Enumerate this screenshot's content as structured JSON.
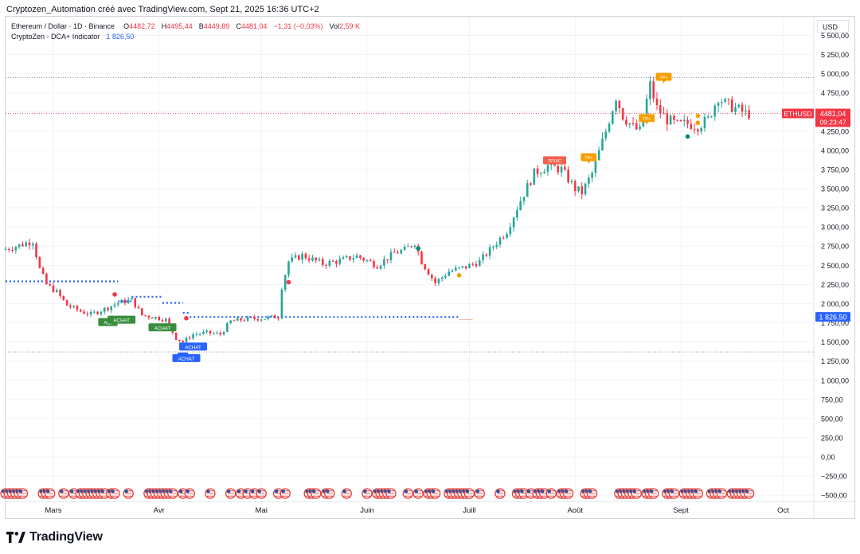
{
  "header": {
    "caption": "Cryptozen_Automation créé avec TradingView.com, Sept 21, 2025 16:36 UTC+2"
  },
  "legend": {
    "symbol": "Ethereum / Dollar · 1D · Binance",
    "o_label": "O",
    "o_value": "4482,72",
    "h_label": "H",
    "h_value": "4495,44",
    "b_label": "B",
    "b_value": "4449,89",
    "c_label": "C",
    "c_value": "4481,04",
    "change": "−1,31 (−0,03%)",
    "vol_label": "Vol",
    "vol_value": "2,59 K",
    "indicator_name": "CryptoZen - DCA+ Indicator",
    "indicator_value": "1 826,50"
  },
  "price_axis": {
    "currency": "USD",
    "ticks": [
      "5 500,00",
      "5 250,00",
      "5 000,00",
      "4 750,00",
      "4 500,00",
      "4 250,00",
      "4 000,00",
      "3 750,00",
      "3 500,00",
      "3 250,00",
      "3 000,00",
      "2 750,00",
      "2 500,00",
      "2 250,00",
      "2 000,00",
      "1 750,00",
      "1 500,00",
      "1 250,00",
      "1 000,00",
      "750,00",
      "500,00",
      "250,00",
      "0,00",
      "−250,00",
      "−500,00"
    ]
  },
  "time_axis": {
    "labels": [
      "Mars",
      "Avr",
      "Mai",
      "Juin",
      "Juill",
      "Août",
      "Sept",
      "Oct"
    ]
  },
  "price_badge": {
    "symbol": "ETHUSD",
    "price": "4481,04",
    "countdown": "09:23:47"
  },
  "indicator_badge": {
    "value": "1 826,50"
  },
  "signals": {
    "buy": "ACHAT",
    "buy_short": "ACI",
    "buy_short_2": "A",
    "tp_label": "TP10C",
    "tp_small": "TP+"
  },
  "brand": {
    "name": "TradingView"
  },
  "colors": {
    "up": "#26a69a",
    "down": "#f23645",
    "dca": "#2962ff",
    "buy_badge": "#388e3c",
    "buy_badge_blue": "#2962ff",
    "tp_red": "#f0624d",
    "tp_orange": "#f59f00"
  },
  "chart_data": {
    "type": "candlestick",
    "symbol": "ETHUSD",
    "timeframe": "1D",
    "x_range": [
      "2025-02-15",
      "2025-10-10"
    ],
    "ylim": [
      -550,
      5650
    ],
    "y_ticks": [
      5500,
      5250,
      5000,
      4750,
      4500,
      4250,
      4000,
      3750,
      3500,
      3250,
      3000,
      2750,
      2500,
      2250,
      2000,
      1750,
      1500,
      1250,
      1000,
      750,
      500,
      250,
      0,
      -250,
      -500
    ],
    "last_price": 4481.04,
    "horizontal_levels": [
      4950,
      4481,
      1370
    ],
    "price_path": [
      [
        "2025-02-15",
        2700
      ],
      [
        "2025-02-20",
        2760
      ],
      [
        "2025-02-24",
        2820
      ],
      [
        "2025-02-26",
        2450
      ],
      [
        "2025-02-28",
        2250
      ],
      [
        "2025-03-03",
        2150
      ],
      [
        "2025-03-06",
        1980
      ],
      [
        "2025-03-10",
        1900
      ],
      [
        "2025-03-13",
        1860
      ],
      [
        "2025-03-17",
        1930
      ],
      [
        "2025-03-21",
        2010
      ],
      [
        "2025-03-25",
        2050
      ],
      [
        "2025-03-28",
        1850
      ],
      [
        "2025-04-01",
        1820
      ],
      [
        "2025-04-04",
        1790
      ],
      [
        "2025-04-07",
        1550
      ],
      [
        "2025-04-09",
        1500
      ],
      [
        "2025-04-12",
        1600
      ],
      [
        "2025-04-16",
        1620
      ],
      [
        "2025-04-20",
        1600
      ],
      [
        "2025-04-23",
        1770
      ],
      [
        "2025-04-28",
        1800
      ],
      [
        "2025-05-03",
        1810
      ],
      [
        "2025-05-07",
        1830
      ],
      [
        "2025-05-08",
        2220
      ],
      [
        "2025-05-10",
        2550
      ],
      [
        "2025-05-14",
        2630
      ],
      [
        "2025-05-20",
        2520
      ],
      [
        "2025-05-25",
        2560
      ],
      [
        "2025-05-30",
        2620
      ],
      [
        "2025-06-05",
        2500
      ],
      [
        "2025-06-10",
        2660
      ],
      [
        "2025-06-13",
        2700
      ],
      [
        "2025-06-16",
        2800
      ],
      [
        "2025-06-18",
        2550
      ],
      [
        "2025-06-22",
        2270
      ],
      [
        "2025-06-26",
        2420
      ],
      [
        "2025-07-01",
        2480
      ],
      [
        "2025-07-05",
        2550
      ],
      [
        "2025-07-09",
        2750
      ],
      [
        "2025-07-13",
        2950
      ],
      [
        "2025-07-17",
        3350
      ],
      [
        "2025-07-21",
        3700
      ],
      [
        "2025-07-25",
        3800
      ],
      [
        "2025-07-29",
        3750
      ],
      [
        "2025-08-02",
        3500
      ],
      [
        "2025-08-04",
        3450
      ],
      [
        "2025-08-07",
        3700
      ],
      [
        "2025-08-11",
        4250
      ],
      [
        "2025-08-14",
        4700
      ],
      [
        "2025-08-16",
        4450
      ],
      [
        "2025-08-19",
        4300
      ],
      [
        "2025-08-21",
        4250
      ],
      [
        "2025-08-24",
        4850
      ],
      [
        "2025-08-26",
        4550
      ],
      [
        "2025-08-29",
        4400
      ],
      [
        "2025-09-01",
        4330
      ],
      [
        "2025-09-04",
        4350
      ],
      [
        "2025-09-07",
        4320
      ],
      [
        "2025-09-10",
        4400
      ],
      [
        "2025-09-13",
        4700
      ],
      [
        "2025-09-15",
        4610
      ],
      [
        "2025-09-18",
        4550
      ],
      [
        "2025-09-21",
        4481
      ]
    ],
    "dca_levels": [
      {
        "from": "2025-02-15",
        "to": "2025-03-20",
        "value": 2290
      },
      {
        "from": "2025-03-20",
        "to": "2025-03-24",
        "value": 2030
      },
      {
        "from": "2025-03-24",
        "to": "2025-04-02",
        "value": 2090
      },
      {
        "from": "2025-04-02",
        "to": "2025-04-08",
        "value": 2010
      },
      {
        "from": "2025-04-08",
        "to": "2025-04-10",
        "value": 1880
      },
      {
        "from": "2025-04-10",
        "to": "2025-06-28",
        "value": 1826.5
      }
    ],
    "buy_signals": [
      {
        "date": "2025-03-17",
        "price": 1760,
        "label": "ACI",
        "color": "green"
      },
      {
        "date": "2025-03-21",
        "price": 1790,
        "label": "ACHAT",
        "color": "green"
      },
      {
        "date": "2025-04-02",
        "price": 1690,
        "label": "ACHAT",
        "color": "green"
      },
      {
        "date": "2025-04-11",
        "price": 1440,
        "label": "ACHAT",
        "color": "blue"
      },
      {
        "date": "2025-04-08",
        "price": 1310,
        "label": "A",
        "color": "blue"
      },
      {
        "date": "2025-04-09",
        "price": 1290,
        "label": "ACHAT",
        "color": "blue"
      }
    ],
    "tp_signals": [
      {
        "date": "2025-07-26",
        "price": 3870,
        "label": "TP10C",
        "color": "red"
      },
      {
        "date": "2025-08-05",
        "price": 3910,
        "label": "TP+",
        "color": "orange"
      },
      {
        "date": "2025-08-22",
        "price": 4420,
        "label": "TP+",
        "color": "orange"
      },
      {
        "date": "2025-08-27",
        "price": 4960,
        "label": "TP+",
        "color": "orange"
      }
    ],
    "dot_markers": [
      {
        "date": "2025-03-19",
        "price": 2120,
        "color": "red"
      },
      {
        "date": "2025-04-09",
        "price": 1810,
        "color": "red"
      },
      {
        "date": "2025-05-09",
        "price": 2280,
        "color": "red"
      },
      {
        "date": "2025-06-16",
        "price": 2720,
        "color": "teal"
      },
      {
        "date": "2025-06-28",
        "price": 2370,
        "color": "orange"
      },
      {
        "date": "2025-09-03",
        "price": 4180,
        "color": "teal"
      },
      {
        "date": "2025-09-06",
        "price": 4450,
        "color": "orange"
      },
      {
        "date": "2025-09-06",
        "price": 4360,
        "color": "orange"
      }
    ],
    "event_days": [
      "2025-02-15",
      "2025-02-16",
      "2025-02-17",
      "2025-02-18",
      "2025-02-19",
      "2025-02-20",
      "2025-02-26",
      "2025-02-27",
      "2025-02-28",
      "2025-03-04",
      "2025-03-07",
      "2025-03-09",
      "2025-03-10",
      "2025-03-11",
      "2025-03-12",
      "2025-03-13",
      "2025-03-14",
      "2025-03-15",
      "2025-03-16",
      "2025-03-18",
      "2025-03-19",
      "2025-03-23",
      "2025-03-29",
      "2025-03-30",
      "2025-03-31",
      "2025-04-01",
      "2025-04-02",
      "2025-04-03",
      "2025-04-04",
      "2025-04-05",
      "2025-04-08",
      "2025-04-10",
      "2025-04-16",
      "2025-04-22",
      "2025-04-25",
      "2025-04-27",
      "2025-04-29",
      "2025-05-01",
      "2025-05-06",
      "2025-05-08",
      "2025-05-15",
      "2025-05-16",
      "2025-05-17",
      "2025-05-20",
      "2025-05-21",
      "2025-05-26",
      "2025-06-01",
      "2025-06-04",
      "2025-06-05",
      "2025-06-06",
      "2025-06-07",
      "2025-06-08",
      "2025-06-13",
      "2025-06-16",
      "2025-06-19",
      "2025-06-20",
      "2025-06-21",
      "2025-06-25",
      "2025-06-26",
      "2025-06-27",
      "2025-06-28",
      "2025-06-29",
      "2025-06-30",
      "2025-07-01",
      "2025-07-04",
      "2025-07-10",
      "2025-07-15",
      "2025-07-16",
      "2025-07-17",
      "2025-07-19",
      "2025-07-21",
      "2025-07-22",
      "2025-07-23",
      "2025-07-25",
      "2025-07-28",
      "2025-07-29",
      "2025-07-30",
      "2025-08-04",
      "2025-08-05",
      "2025-08-06",
      "2025-08-14",
      "2025-08-15",
      "2025-08-16",
      "2025-08-17",
      "2025-08-18",
      "2025-08-19",
      "2025-08-22",
      "2025-08-23",
      "2025-08-24",
      "2025-08-28",
      "2025-08-29",
      "2025-08-30",
      "2025-09-02",
      "2025-09-03",
      "2025-09-04",
      "2025-09-05",
      "2025-09-06",
      "2025-09-10",
      "2025-09-11",
      "2025-09-12",
      "2025-09-13",
      "2025-09-16",
      "2025-09-17",
      "2025-09-18",
      "2025-09-19",
      "2025-09-20",
      "2025-09-21"
    ]
  }
}
